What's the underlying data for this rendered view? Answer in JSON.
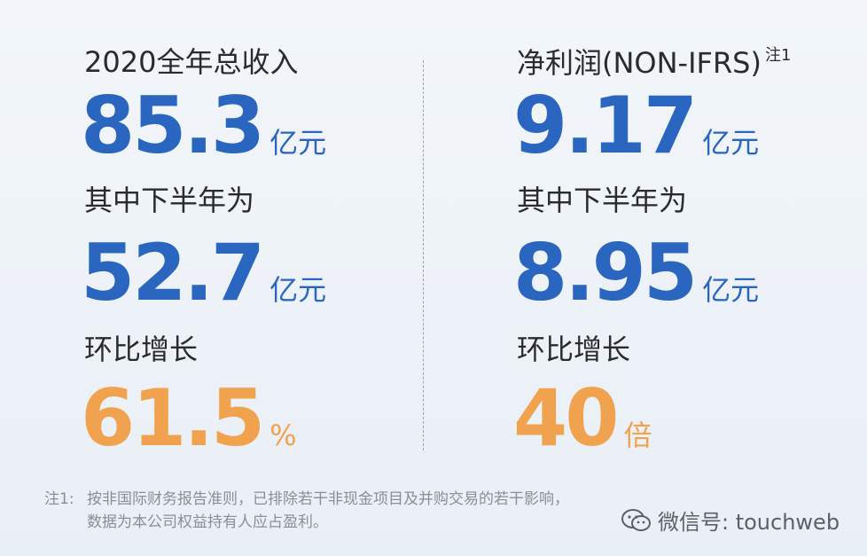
{
  "left": {
    "title": "2020全年总收入",
    "value": "85.3",
    "unit": "亿元",
    "sub_title": "其中下半年为",
    "sub_value": "52.7",
    "sub_unit": "亿元",
    "growth_title": "环比增长",
    "growth_value": "61.5",
    "growth_unit": "%"
  },
  "right": {
    "title": "净利润(NON-IFRS)",
    "note_mark": "注1",
    "value": "9.17",
    "unit": "亿元",
    "sub_title": "其中下半年为",
    "sub_value": "8.95",
    "sub_unit": "亿元",
    "growth_title": "环比增长",
    "growth_value": "40",
    "growth_unit": "倍"
  },
  "footnote": {
    "label": "注1:",
    "lines": [
      "按非国际财务报告准则，已排除若干非现金项目及并购交易的若干影响，",
      "数据为本公司权益持有人应占盈利。"
    ]
  },
  "watermark": "微信号: touchweb"
}
